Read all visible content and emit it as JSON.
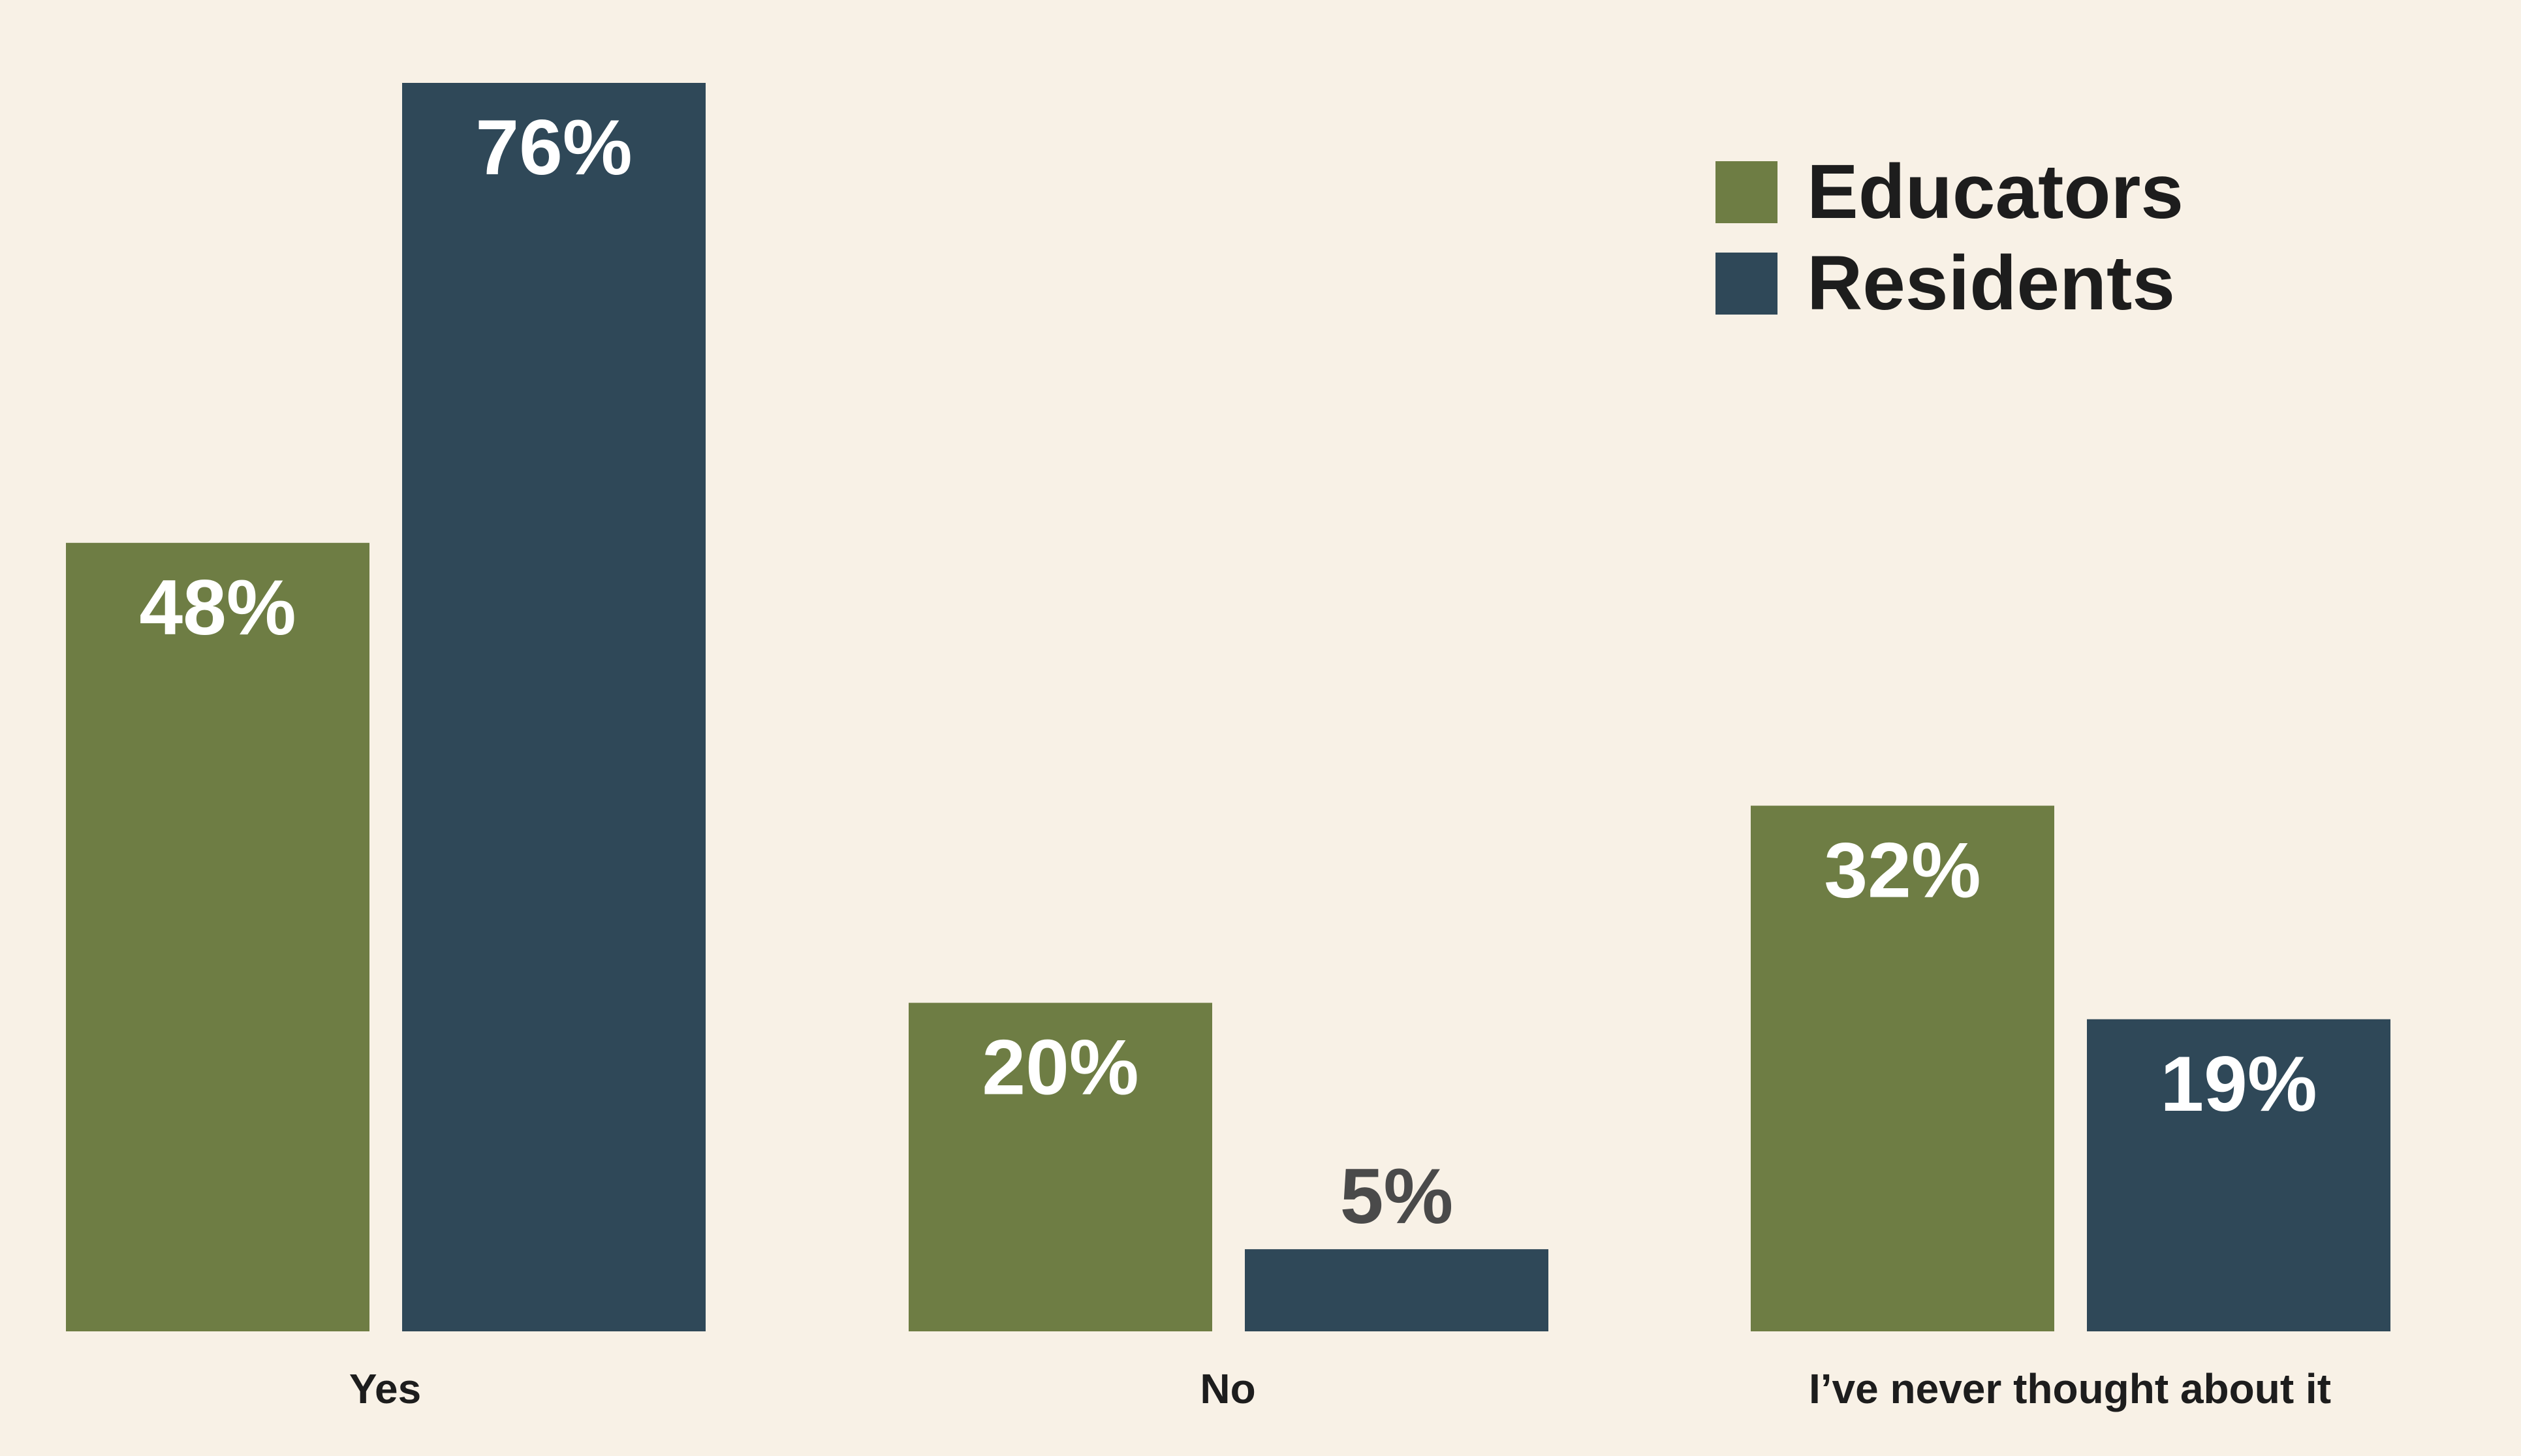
{
  "chart_data": {
    "type": "bar",
    "categories": [
      "Yes",
      "No",
      "I’ve never thought about it"
    ],
    "series": [
      {
        "name": "Educators",
        "values": [
          48,
          20,
          32
        ],
        "labels": [
          "48%",
          "20%",
          "32%"
        ]
      },
      {
        "name": "Residents",
        "values": [
          76,
          5,
          19
        ],
        "labels": [
          "76%",
          "5%",
          "19%"
        ]
      }
    ],
    "title": "",
    "xlabel": "",
    "ylabel": "",
    "ylim": [
      0,
      76
    ],
    "grid": false,
    "legend_position": "top-right",
    "colors": {
      "Educators": "#6e7d44",
      "Residents": "#2f4858",
      "label_inside": "#ffffff",
      "label_outside": "#4a4a4a",
      "background": "#f8f1e6"
    }
  }
}
